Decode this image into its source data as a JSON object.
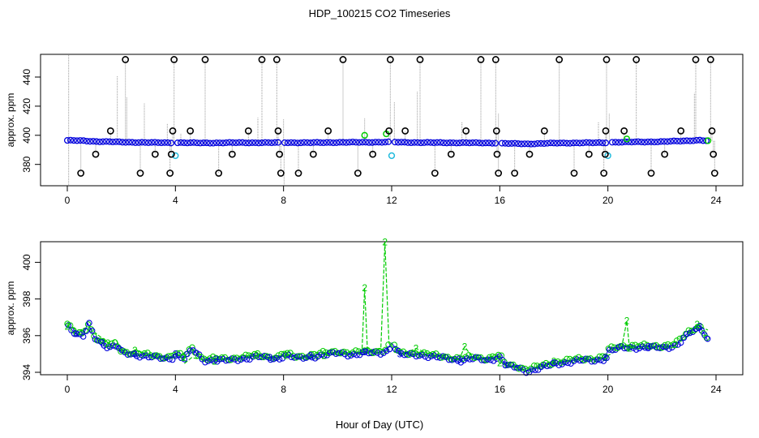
{
  "title": "HDP_100215  CO2 Timeseries",
  "xlabel": "Hour of Day (UTC)",
  "colors": {
    "raw_points": "#000000",
    "hourly_points": "#00cc00",
    "flagged_points": "#22bbdd",
    "averaged_points": "#0000dd",
    "connector": "#999999"
  },
  "chart_data": [
    {
      "type": "scatter",
      "panel": "top",
      "ylabel": "approx. ppm",
      "xlim": [
        0,
        24
      ],
      "ylim": [
        365,
        453
      ],
      "x_ticks": [
        "0",
        "4",
        "8",
        "12",
        "16",
        "20",
        "24"
      ],
      "y_ticks": [
        "380",
        "400",
        "420",
        "440"
      ],
      "baseline": [
        [
          0.0,
          396.5
        ],
        [
          0.5,
          396.3
        ],
        [
          1.0,
          395.8
        ],
        [
          1.5,
          395.6
        ],
        [
          2.0,
          395.3
        ],
        [
          3.0,
          395.0
        ],
        [
          3.8,
          394.9
        ],
        [
          4.0,
          395.0
        ],
        [
          5.0,
          394.7
        ],
        [
          6.0,
          394.9
        ],
        [
          7.0,
          394.9
        ],
        [
          7.8,
          394.9
        ],
        [
          8.0,
          395.0
        ],
        [
          9.0,
          394.9
        ],
        [
          10.0,
          395.1
        ],
        [
          11.0,
          395.2
        ],
        [
          11.9,
          395.3
        ],
        [
          12.0,
          395.3
        ],
        [
          13.0,
          395.0
        ],
        [
          14.0,
          394.9
        ],
        [
          15.0,
          394.8
        ],
        [
          15.9,
          394.7
        ],
        [
          16.0,
          394.5
        ],
        [
          17.0,
          394.1
        ],
        [
          18.0,
          394.6
        ],
        [
          19.0,
          394.8
        ],
        [
          19.9,
          394.9
        ],
        [
          20.0,
          395.2
        ],
        [
          21.0,
          395.4
        ],
        [
          22.0,
          395.6
        ],
        [
          23.0,
          396.3
        ],
        [
          23.4,
          396.6
        ],
        [
          23.7,
          396.1
        ]
      ],
      "outliers_black": [
        [
          0.5,
          374
        ],
        [
          1.05,
          387
        ],
        [
          1.6,
          403
        ],
        [
          2.15,
          452
        ],
        [
          2.7,
          374
        ],
        [
          3.25,
          387
        ],
        [
          3.8,
          374
        ],
        [
          3.85,
          387
        ],
        [
          3.9,
          403
        ],
        [
          3.95,
          452
        ],
        [
          4.55,
          403
        ],
        [
          5.1,
          452
        ],
        [
          5.6,
          374
        ],
        [
          6.1,
          387
        ],
        [
          6.7,
          403
        ],
        [
          7.2,
          452
        ],
        [
          7.75,
          452
        ],
        [
          7.8,
          403
        ],
        [
          7.85,
          387
        ],
        [
          7.9,
          374
        ],
        [
          8.55,
          374
        ],
        [
          9.1,
          387
        ],
        [
          9.65,
          403
        ],
        [
          10.2,
          452
        ],
        [
          10.75,
          374
        ],
        [
          11.3,
          387
        ],
        [
          11.9,
          403
        ],
        [
          11.95,
          452
        ],
        [
          12.5,
          403
        ],
        [
          13.05,
          452
        ],
        [
          13.6,
          374
        ],
        [
          14.2,
          387
        ],
        [
          14.75,
          403
        ],
        [
          15.3,
          452
        ],
        [
          15.85,
          452
        ],
        [
          15.88,
          403
        ],
        [
          15.9,
          387
        ],
        [
          15.95,
          374
        ],
        [
          16.55,
          374
        ],
        [
          17.1,
          387
        ],
        [
          17.65,
          403
        ],
        [
          18.2,
          452
        ],
        [
          18.75,
          374
        ],
        [
          19.3,
          387
        ],
        [
          19.85,
          374
        ],
        [
          19.9,
          387
        ],
        [
          19.92,
          403
        ],
        [
          19.95,
          452
        ],
        [
          20.6,
          403
        ],
        [
          21.05,
          452
        ],
        [
          21.6,
          374
        ],
        [
          22.1,
          387
        ],
        [
          22.7,
          403
        ],
        [
          23.25,
          452
        ],
        [
          23.8,
          452
        ],
        [
          23.85,
          403
        ],
        [
          23.9,
          387
        ],
        [
          23.95,
          374
        ]
      ],
      "outliers_green": [
        [
          11.0,
          400
        ],
        [
          11.8,
          401
        ],
        [
          20.7,
          397.5
        ],
        [
          23.7,
          396.3
        ]
      ],
      "outliers_cyan": [
        [
          4.0,
          386
        ],
        [
          12.0,
          386
        ],
        [
          20.0,
          386
        ]
      ],
      "spikes": [
        [
          0.05,
          455
        ],
        [
          0.05,
          366
        ],
        [
          1.85,
          441
        ],
        [
          2.2,
          426
        ],
        [
          2.85,
          422
        ],
        [
          3.7,
          408
        ],
        [
          4.2,
          401
        ],
        [
          7.05,
          412
        ],
        [
          8.0,
          411
        ],
        [
          8.02,
          365
        ],
        [
          11.0,
          412
        ],
        [
          12.1,
          423
        ],
        [
          12.95,
          430
        ],
        [
          14.6,
          409
        ],
        [
          15.95,
          415
        ],
        [
          19.65,
          409
        ],
        [
          20.05,
          415
        ],
        [
          23.2,
          429
        ]
      ]
    },
    {
      "type": "line",
      "panel": "bottom",
      "ylabel": "approx. ppm",
      "xlim": [
        0,
        24
      ],
      "ylim": [
        394,
        401.5
      ],
      "x_ticks": [
        "0",
        "4",
        "8",
        "12",
        "16",
        "20",
        "24"
      ],
      "y_ticks": [
        "394",
        "396",
        "398",
        "400"
      ],
      "series": [
        {
          "marker": "2",
          "points": [
            [
              0.0,
              396.5
            ],
            [
              0.4,
              396.3
            ],
            [
              0.85,
              396.4
            ],
            [
              1.0,
              396.2
            ],
            [
              1.5,
              395.6
            ],
            [
              1.8,
              395.8
            ],
            [
              2.0,
              395.2
            ],
            [
              2.3,
              395.1
            ],
            [
              2.5,
              395.2
            ],
            [
              3.0,
              395.0
            ],
            [
              3.5,
              394.9
            ],
            [
              3.8,
              394.8
            ],
            [
              4.3,
              394.8
            ],
            [
              4.35,
              394.5
            ],
            [
              4.6,
              394.8
            ],
            [
              5.0,
              394.7
            ],
            [
              5.45,
              394.6
            ],
            [
              5.6,
              394.7
            ],
            [
              6.0,
              394.8
            ],
            [
              6.5,
              394.9
            ],
            [
              7.0,
              394.9
            ],
            [
              7.2,
              394.7
            ],
            [
              7.5,
              394.8
            ],
            [
              7.8,
              394.9
            ],
            [
              8.1,
              394.9
            ],
            [
              8.5,
              394.8
            ],
            [
              9.0,
              394.8
            ],
            [
              9.25,
              394.7
            ],
            [
              9.5,
              394.9
            ],
            [
              10.0,
              395.0
            ],
            [
              10.5,
              395.1
            ],
            [
              10.9,
              395.1
            ],
            [
              11.0,
              398.6
            ],
            [
              11.1,
              395.3
            ],
            [
              11.4,
              395.2
            ],
            [
              11.6,
              395.3
            ],
            [
              11.75,
              401.1
            ],
            [
              11.9,
              395.6
            ],
            [
              12.1,
              395.1
            ],
            [
              12.4,
              395.0
            ],
            [
              12.9,
              395.3
            ],
            [
              13.4,
              395.0
            ],
            [
              14.0,
              394.9
            ],
            [
              14.5,
              394.7
            ],
            [
              14.7,
              395.4
            ],
            [
              15.0,
              394.8
            ],
            [
              15.5,
              394.8
            ],
            [
              15.8,
              394.9
            ],
            [
              16.0,
              394.5
            ],
            [
              16.5,
              394.3
            ],
            [
              17.0,
              394.1
            ],
            [
              17.6,
              394.4
            ],
            [
              18.0,
              394.6
            ],
            [
              18.5,
              394.6
            ],
            [
              19.0,
              394.8
            ],
            [
              19.5,
              394.7
            ],
            [
              19.9,
              394.8
            ],
            [
              20.2,
              395.1
            ],
            [
              20.5,
              395.3
            ],
            [
              20.7,
              396.8
            ],
            [
              20.8,
              395.3
            ],
            [
              21.0,
              395.3
            ],
            [
              21.5,
              395.3
            ],
            [
              22.0,
              395.2
            ],
            [
              22.5,
              395.5
            ],
            [
              23.0,
              396.0
            ],
            [
              23.3,
              396.6
            ],
            [
              23.7,
              396.3
            ]
          ]
        },
        {
          "marker": "3",
          "points": [
            [
              0.0,
              396.6
            ],
            [
              0.3,
              396.1
            ],
            [
              0.6,
              396.0
            ],
            [
              0.75,
              396.7
            ],
            [
              1.0,
              395.9
            ],
            [
              1.3,
              395.6
            ],
            [
              1.5,
              395.4
            ],
            [
              1.8,
              395.5
            ],
            [
              2.0,
              395.1
            ],
            [
              2.5,
              395.0
            ],
            [
              3.0,
              394.9
            ],
            [
              3.5,
              394.8
            ],
            [
              3.8,
              394.8
            ],
            [
              4.0,
              395.0
            ],
            [
              4.3,
              394.8
            ],
            [
              4.6,
              395.3
            ],
            [
              5.0,
              394.7
            ],
            [
              5.5,
              394.7
            ],
            [
              6.0,
              394.7
            ],
            [
              6.5,
              394.8
            ],
            [
              7.0,
              394.9
            ],
            [
              7.5,
              394.8
            ],
            [
              7.8,
              394.8
            ],
            [
              8.0,
              395.0
            ],
            [
              8.5,
              394.8
            ],
            [
              9.0,
              394.9
            ],
            [
              9.5,
              395.0
            ],
            [
              10.0,
              395.1
            ],
            [
              10.5,
              395.0
            ],
            [
              11.0,
              395.1
            ],
            [
              11.5,
              395.1
            ],
            [
              11.8,
              395.2
            ],
            [
              12.0,
              395.6
            ],
            [
              12.3,
              395.0
            ],
            [
              13.0,
              395.0
            ],
            [
              13.5,
              394.9
            ],
            [
              14.0,
              394.8
            ],
            [
              14.5,
              394.7
            ],
            [
              15.0,
              394.8
            ],
            [
              15.5,
              394.7
            ],
            [
              16.0,
              394.9
            ],
            [
              16.2,
              394.4
            ],
            [
              16.6,
              394.3
            ],
            [
              17.0,
              394.1
            ],
            [
              17.5,
              394.3
            ],
            [
              18.0,
              394.5
            ],
            [
              18.5,
              394.6
            ],
            [
              19.0,
              394.7
            ],
            [
              19.5,
              394.7
            ],
            [
              19.9,
              394.8
            ],
            [
              20.0,
              395.2
            ],
            [
              20.5,
              395.4
            ],
            [
              21.0,
              395.4
            ],
            [
              21.5,
              395.4
            ],
            [
              22.0,
              395.4
            ],
            [
              22.5,
              395.5
            ],
            [
              23.0,
              396.2
            ],
            [
              23.4,
              396.5
            ],
            [
              23.6,
              396.0
            ],
            [
              23.7,
              395.7
            ]
          ]
        }
      ]
    }
  ]
}
